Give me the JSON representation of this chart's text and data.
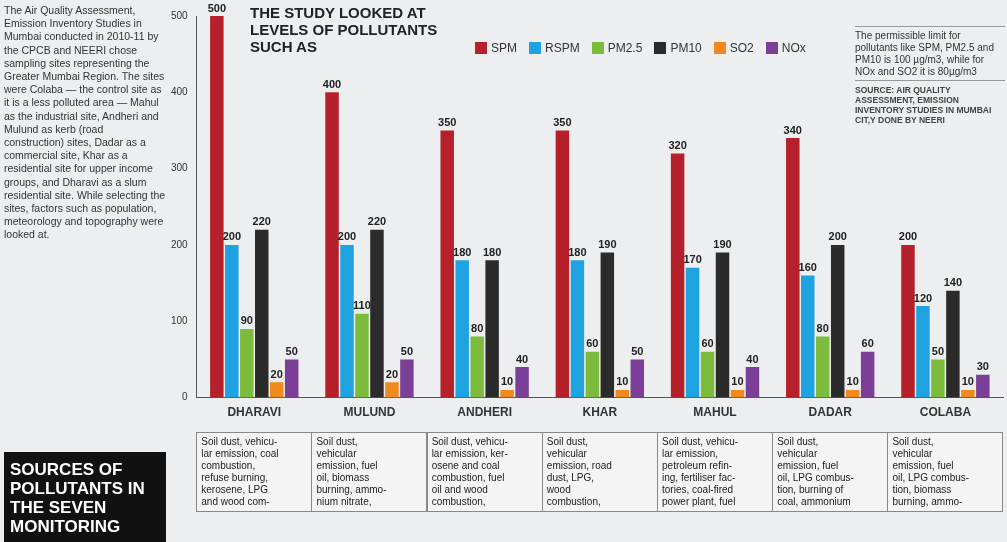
{
  "chart_data": {
    "type": "bar",
    "title": "THE STUDY LOOKED AT LEVELS OF POLLUTANTS SUCH AS",
    "categories": [
      "DHARAVI",
      "MULUND",
      "ANDHERI",
      "KHAR",
      "MAHUL",
      "DADAR",
      "COLABA"
    ],
    "series": [
      {
        "name": "SPM",
        "color": "#b5202a",
        "values": [
          500,
          400,
          350,
          350,
          320,
          340,
          200
        ]
      },
      {
        "name": "RSPM",
        "color": "#1fa3e0",
        "values": [
          200,
          200,
          180,
          180,
          170,
          160,
          120
        ]
      },
      {
        "name": "PM2.5",
        "color": "#7dbb3c",
        "values": [
          90,
          110,
          80,
          60,
          60,
          80,
          50
        ]
      },
      {
        "name": "PM10",
        "color": "#2b2b2b",
        "values": [
          220,
          220,
          180,
          190,
          190,
          200,
          140
        ]
      },
      {
        "name": "SO2",
        "color": "#f08a1c",
        "values": [
          20,
          20,
          10,
          10,
          10,
          10,
          10
        ]
      },
      {
        "name": "NOx",
        "color": "#7b3f98",
        "values": [
          50,
          50,
          40,
          50,
          40,
          60,
          30
        ]
      }
    ],
    "ylim": [
      0,
      500
    ],
    "yticks": [
      0,
      100,
      200,
      300,
      400,
      500
    ],
    "data_labels": true,
    "legend": "top",
    "annotations": [
      "The Air Quality Assessment, Emission Inventory Studies in Mumbai conducted in 2010-11 by the CPCB and NEERI chose sampling sites representing the Greater Mumbai Region. The sites were Colaba — the control site as it is a less polluted area — Mahul as the industrial site, Andheri and Mulund as kerb (road construction) sites, Dadar as a commercial site, Khar as a residential site for upper income groups, and Dharavi as a slum residential site. While selecting the sites, factors such as population, meteorology and topography were looked at.",
      "SOURCES OF POLLUTANTS IN THE SEVEN MONITORING",
      "The permissible limit for pollutants like SPM, PM2.5 and PM10 is 100 µg/m3, while for NOx and SO2 it is 80µg/m3",
      "SOURCE: AIR QUALITY ASSESSMENT, EMISSION INVENTORY STUDIES IN MUMBAI CIT,Y DONE BY NEERI",
      "Soil dust, vehicu-\nlar emission, coal\ncombustion,\nrefuse burning,\nkerosene, LPG\nand wood com-",
      "Soil dust,\nvehicular\nemission, fuel\noil, biomass\nburning, ammo-\nnium nitrate,",
      "Soil dust, vehicu-\nlar emission, ker-\nosene and coal\ncombustion, fuel\noil and wood\ncombustion,",
      "Soil dust,\nvehicular\nemission, road\ndust, LPG,\nwood\ncombustion,",
      "Soil dust, vehicu-\nlar emission,\npetroleum refin-\ning, fertiliser fac-\ntories, coal-fired\npower plant, fuel",
      "Soil dust,\nvehicular\nemission, fuel\noil, LPG combus-\ntion, burning of\ncoal, ammonium",
      "Soil dust,\nvehicular\nemission, fuel\noil, LPG combus-\ntion, biomass\nburning, ammo-"
    ]
  }
}
